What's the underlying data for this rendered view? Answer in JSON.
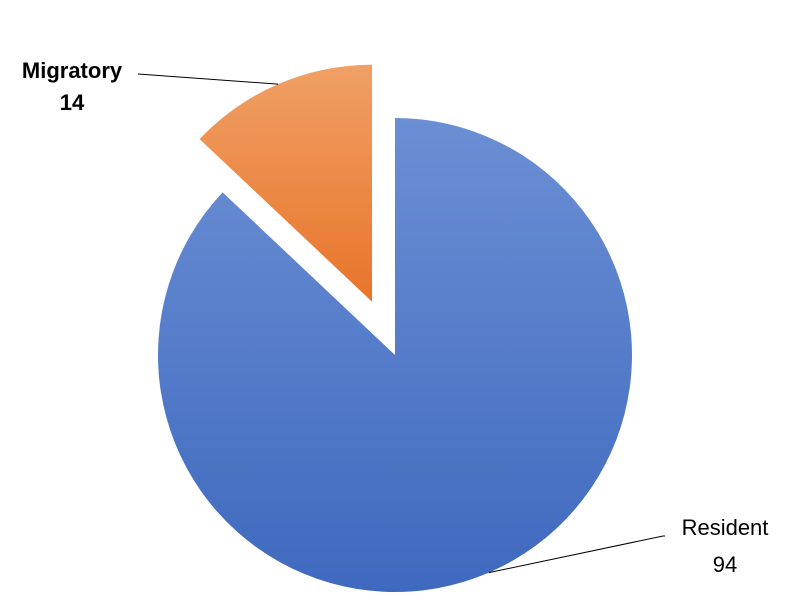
{
  "chart_data": {
    "type": "pie",
    "title": "",
    "slices": [
      {
        "label": "Resident",
        "value": 94,
        "value_label": "94",
        "color": "#4472C4",
        "exploded": false,
        "label_bold": false
      },
      {
        "label": "Migratory",
        "value": 14,
        "value_label": "14",
        "color": "#ED7D31",
        "exploded": true,
        "label_bold": true
      }
    ],
    "start_angle": "12 o'clock, clockwise",
    "legend": "none"
  }
}
